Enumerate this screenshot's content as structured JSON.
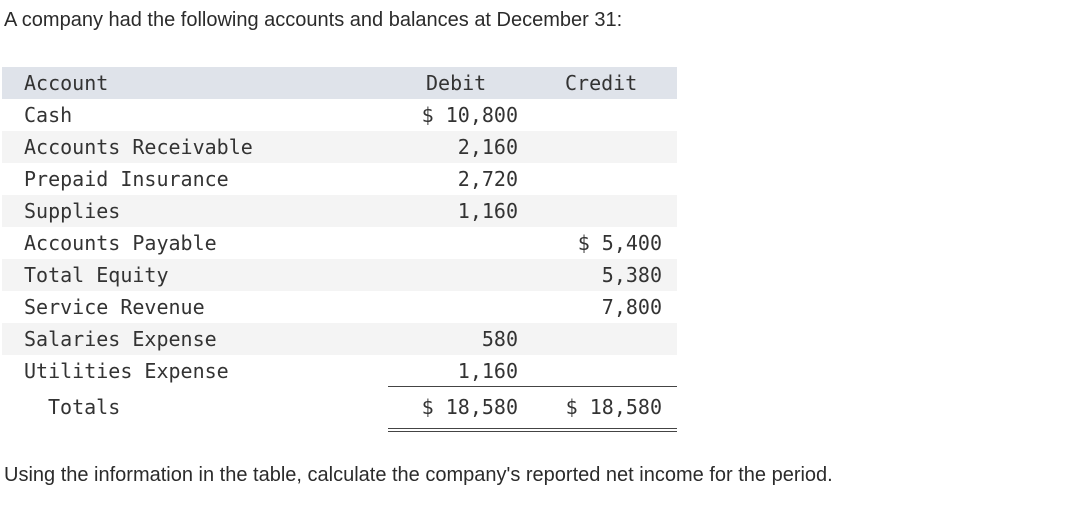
{
  "intro_text": "A company had the following accounts and balances at December 31:",
  "table": {
    "headers": {
      "account": "Account",
      "debit": "Debit",
      "credit": "Credit"
    },
    "rows": [
      {
        "account": "Cash",
        "debit": "$ 10,800",
        "credit": ""
      },
      {
        "account": "Accounts Receivable",
        "debit": "2,160",
        "credit": ""
      },
      {
        "account": "Prepaid Insurance",
        "debit": "2,720",
        "credit": ""
      },
      {
        "account": "Supplies",
        "debit": "1,160",
        "credit": ""
      },
      {
        "account": "Accounts Payable",
        "debit": "",
        "credit": "$ 5,400"
      },
      {
        "account": "Total Equity",
        "debit": "",
        "credit": "5,380"
      },
      {
        "account": "Service Revenue",
        "debit": "",
        "credit": "7,800"
      },
      {
        "account": "Salaries Expense",
        "debit": "580",
        "credit": ""
      },
      {
        "account": "Utilities Expense",
        "debit": "1,160",
        "credit": ""
      }
    ],
    "totals": {
      "label": "Totals",
      "debit": "$ 18,580",
      "credit": "$ 18,580"
    }
  },
  "question_text": "Using the information in the table, calculate the company's reported net income for the period."
}
